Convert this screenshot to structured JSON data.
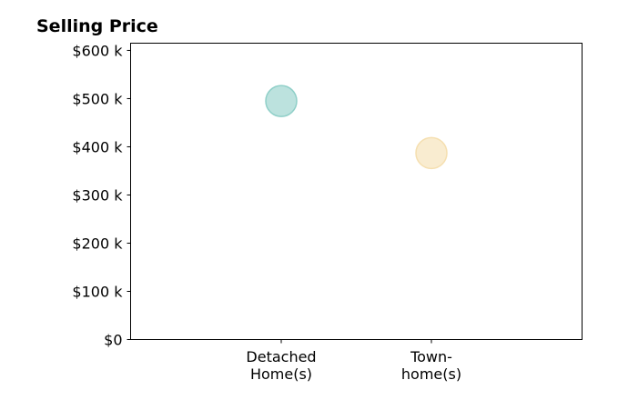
{
  "chart_data": {
    "type": "scatter",
    "title": "Selling Price",
    "xlabel": "",
    "ylabel": "",
    "categories": [
      [
        "Detached",
        "Home(s)"
      ],
      [
        "Town-",
        "home(s)"
      ]
    ],
    "ylim": [
      0,
      615
    ],
    "yticks": [
      0,
      100,
      200,
      300,
      400,
      500,
      600
    ],
    "ytick_labels": [
      "$0",
      "$100 k",
      "$200 k",
      "$300 k",
      "$400 k",
      "$500 k",
      "$600 k"
    ],
    "series": [
      {
        "values": [
          495,
          387
        ]
      }
    ],
    "point_colors": [
      "#8fcfc8",
      "#f5dfb0"
    ],
    "grid": false,
    "legend": "none"
  }
}
